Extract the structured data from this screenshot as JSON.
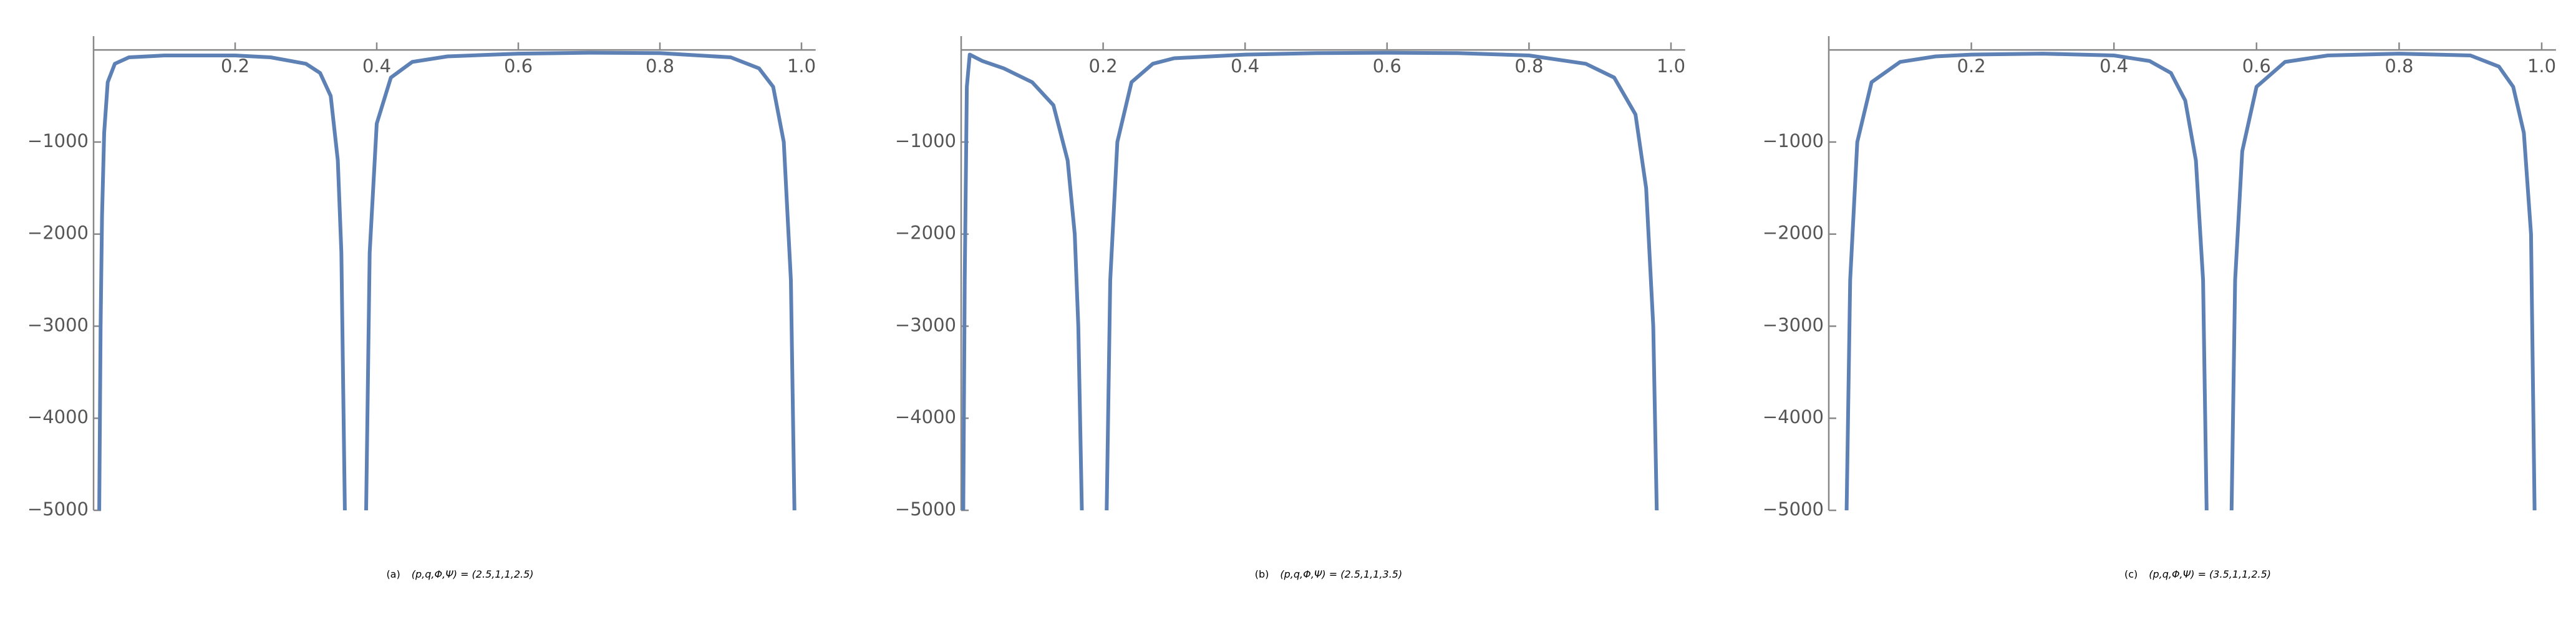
{
  "chart_data": [
    {
      "type": "line",
      "label": "(a)",
      "caption": "(p,q,Φ,Ψ) = (2.5,1,1,2.5)",
      "color": "#5e81b5",
      "xlim": [
        0,
        1.02
      ],
      "ylim": [
        -5000,
        150
      ],
      "xticks": [
        0.2,
        0.4,
        0.6,
        0.8,
        {
          "value": 1,
          "label": "1.0"
        }
      ],
      "yticks": [
        {
          "value": -1000,
          "label": "−1000"
        },
        {
          "value": -2000,
          "label": "−2000"
        },
        {
          "value": -3000,
          "label": "−3000"
        },
        {
          "value": -4000,
          "label": "−4000"
        },
        {
          "value": -5000,
          "label": "−5000"
        }
      ],
      "x": [
        0.008,
        0.01,
        0.012,
        0.015,
        0.02,
        0.03,
        0.05,
        0.1,
        0.2,
        0.25,
        0.3,
        0.32,
        0.335,
        0.345,
        0.35,
        0.355,
        0.36,
        0.385,
        0.39,
        0.4,
        0.42,
        0.45,
        0.5,
        0.6,
        0.7,
        0.8,
        0.9,
        0.94,
        0.96,
        0.975,
        0.985,
        0.99
      ],
      "values": [
        -5000,
        -3000,
        -1800,
        -900,
        -350,
        -150,
        -80,
        -60,
        -60,
        -80,
        -150,
        -250,
        -500,
        -1200,
        -2200,
        -5000,
        null,
        -5000,
        -2200,
        -800,
        -300,
        -130,
        -70,
        -40,
        -30,
        -35,
        -80,
        -200,
        -400,
        -1000,
        -2500,
        -5000
      ]
    },
    {
      "type": "line",
      "label": "(b)",
      "caption": "(p,q,Φ,Ψ) = (2.5,1,1,3.5)",
      "color": "#5e81b5",
      "xlim": [
        0,
        1.02
      ],
      "ylim": [
        -5000,
        150
      ],
      "xticks": [
        0.2,
        0.4,
        0.6,
        0.8,
        {
          "value": 1,
          "label": "1.0"
        }
      ],
      "yticks": [
        {
          "value": -1000,
          "label": "−1000"
        },
        {
          "value": -2000,
          "label": "−2000"
        },
        {
          "value": -3000,
          "label": "−3000"
        },
        {
          "value": -4000,
          "label": "−4000"
        },
        {
          "value": -5000,
          "label": "−5000"
        }
      ],
      "x": [
        0.003,
        0.005,
        0.008,
        0.012,
        0.03,
        0.06,
        0.1,
        0.13,
        0.15,
        0.16,
        0.165,
        0.17,
        0.18,
        0.205,
        0.21,
        0.22,
        0.24,
        0.27,
        0.3,
        0.4,
        0.5,
        0.6,
        0.7,
        0.8,
        0.88,
        0.92,
        0.95,
        0.965,
        0.975,
        0.98
      ],
      "values": [
        -5000,
        -2500,
        -400,
        -50,
        -120,
        -200,
        -350,
        -600,
        -1200,
        -2000,
        -3000,
        -5000,
        null,
        -5000,
        -2500,
        -1000,
        -350,
        -150,
        -90,
        -50,
        -35,
        -30,
        -35,
        -60,
        -150,
        -300,
        -700,
        -1500,
        -3000,
        -5000
      ]
    },
    {
      "type": "line",
      "label": "(c)",
      "caption": "(p,q,Φ,Ψ) = (3.5,1,1,2.5)",
      "color": "#5e81b5",
      "xlim": [
        0,
        1.02
      ],
      "ylim": [
        -5000,
        150
      ],
      "xticks": [
        0.2,
        0.4,
        0.6,
        0.8,
        {
          "value": 1,
          "label": "1.0"
        }
      ],
      "yticks": [
        {
          "value": -1000,
          "label": "−1000"
        },
        {
          "value": -2000,
          "label": "−2000"
        },
        {
          "value": -3000,
          "label": "−3000"
        },
        {
          "value": -4000,
          "label": "−4000"
        },
        {
          "value": -5000,
          "label": "−5000"
        }
      ],
      "x": [
        0.025,
        0.03,
        0.04,
        0.06,
        0.1,
        0.15,
        0.2,
        0.3,
        0.4,
        0.45,
        0.48,
        0.5,
        0.515,
        0.525,
        0.53,
        0.545,
        0.565,
        0.57,
        0.58,
        0.6,
        0.64,
        0.7,
        0.8,
        0.9,
        0.94,
        0.96,
        0.975,
        0.985,
        0.99
      ],
      "values": [
        -5000,
        -2500,
        -1000,
        -350,
        -130,
        -70,
        -50,
        -40,
        -60,
        -120,
        -250,
        -550,
        -1200,
        -2500,
        -5000,
        null,
        -5000,
        -2500,
        -1100,
        -400,
        -130,
        -60,
        -40,
        -60,
        -180,
        -400,
        -900,
        -2000,
        -5000
      ]
    }
  ]
}
